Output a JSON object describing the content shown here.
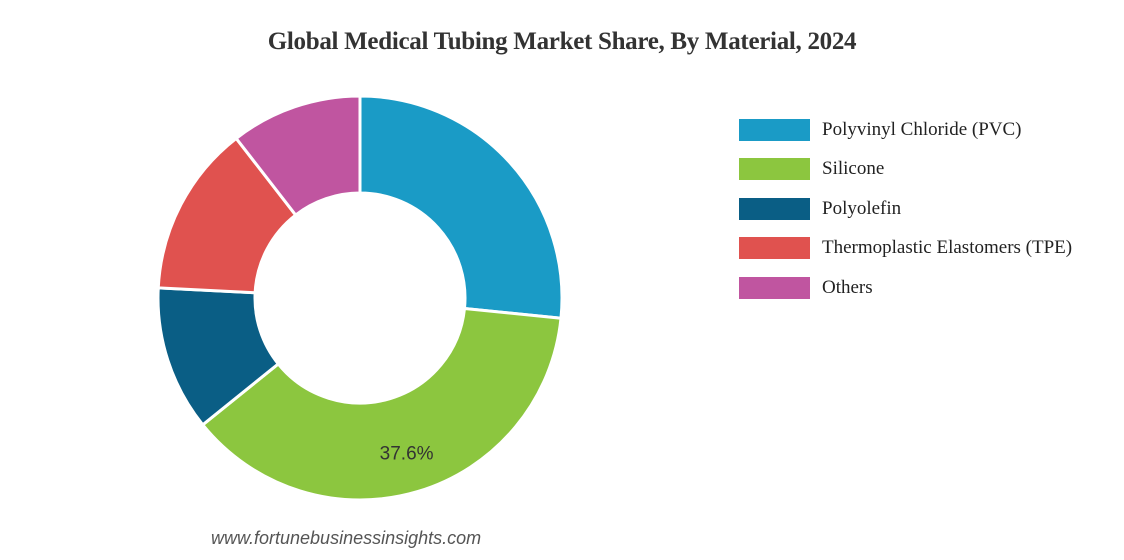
{
  "chart_data": {
    "type": "pie",
    "title": "Global Medical Tubing Market Share, By Material, 2024",
    "categories": [
      "Polyvinyl Chloride (PVC)",
      "Silicone",
      "Polyolefin",
      "Thermoplastic Elastomers (TPE)",
      "Others"
    ],
    "values": [
      26.6,
      37.6,
      11.6,
      13.7,
      10.5
    ],
    "colors": [
      "#1a9bc6",
      "#8cc63f",
      "#0a5e85",
      "#e0524f",
      "#c055a0"
    ],
    "data_labels": [
      "",
      "37.6%",
      "",
      "",
      ""
    ],
    "legend_position": "right"
  },
  "watermark": "www.fortunebusinessinsights.com"
}
